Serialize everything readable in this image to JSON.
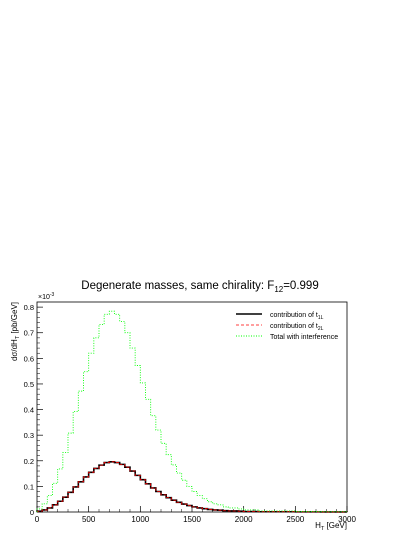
{
  "chart_data": {
    "type": "line",
    "title_main": "Degenerate masses, same chirality: F",
    "title_sub": "12",
    "title_suffix": "=0.999",
    "xlabel_main": "H",
    "xlabel_sub": "T",
    "xlabel_unit": " [GeV]",
    "ylabel_main": "dσ/dH",
    "ylabel_sub": "T",
    "ylabel_unit": " [pb/GeV]",
    "y_multiplier": "×10",
    "y_multiplier_exp": "-3",
    "xlim": [
      0,
      3000
    ],
    "ylim": [
      0,
      0.82
    ],
    "x_ticks": [
      0,
      500,
      1000,
      1500,
      2000,
      2500,
      3000
    ],
    "x_tick_labels": [
      "0",
      "500",
      "1000",
      "1500",
      "2000",
      "2500",
      "3000"
    ],
    "y_ticks": [
      0,
      0.1,
      0.2,
      0.3,
      0.4,
      0.5,
      0.6,
      0.7,
      0.8
    ],
    "y_tick_labels": [
      "0",
      "0.1",
      "0.2",
      "0.3",
      "0.4",
      "0.5",
      "0.6",
      "0.7",
      "0.8"
    ],
    "bin_edges": [
      0,
      50,
      100,
      150,
      200,
      250,
      300,
      350,
      400,
      450,
      500,
      550,
      600,
      650,
      700,
      750,
      800,
      850,
      900,
      950,
      1000,
      1050,
      1100,
      1150,
      1200,
      1250,
      1300,
      1350,
      1400,
      1450,
      1500,
      1550,
      1600,
      1650,
      1700,
      1750,
      1800,
      1850,
      1900,
      1950,
      2000,
      2050,
      2100,
      2150,
      2200,
      2250,
      2300,
      2350,
      2400,
      2450,
      2500,
      2550,
      2600,
      2650,
      2700,
      2750,
      2800,
      2850,
      2900,
      2950,
      3000
    ],
    "legend_position": "top-right",
    "series": [
      {
        "name_main": "contribution of t",
        "name_sub": "1L",
        "color": "#000000",
        "style": "solid",
        "values": [
          0.003,
          0.008,
          0.016,
          0.028,
          0.042,
          0.058,
          0.077,
          0.098,
          0.118,
          0.137,
          0.155,
          0.17,
          0.183,
          0.193,
          0.196,
          0.193,
          0.186,
          0.175,
          0.16,
          0.143,
          0.126,
          0.11,
          0.094,
          0.08,
          0.067,
          0.056,
          0.046,
          0.038,
          0.031,
          0.025,
          0.02,
          0.016,
          0.013,
          0.01,
          0.008,
          0.007,
          0.005,
          0.004,
          0.004,
          0.003,
          0.002,
          0.002,
          0.002,
          0.001,
          0.001,
          0.001,
          0.001,
          0.001,
          0.001,
          0.001,
          0.0005,
          0.0005,
          0.0005,
          0.0005,
          0.0005,
          0.0003,
          0.0003,
          0.0003,
          0.0003,
          0.0003
        ]
      },
      {
        "name_main": "contribution of t",
        "name_sub": "2L",
        "color": "#ff0000",
        "style": "dashed",
        "values": [
          0.003,
          0.008,
          0.016,
          0.028,
          0.042,
          0.058,
          0.077,
          0.098,
          0.118,
          0.137,
          0.155,
          0.17,
          0.183,
          0.193,
          0.196,
          0.193,
          0.186,
          0.175,
          0.16,
          0.143,
          0.126,
          0.11,
          0.094,
          0.08,
          0.067,
          0.056,
          0.046,
          0.038,
          0.031,
          0.025,
          0.02,
          0.016,
          0.013,
          0.01,
          0.008,
          0.007,
          0.005,
          0.004,
          0.004,
          0.003,
          0.002,
          0.002,
          0.002,
          0.001,
          0.001,
          0.001,
          0.001,
          0.001,
          0.001,
          0.001,
          0.0005,
          0.0005,
          0.0005,
          0.0005,
          0.0005,
          0.0003,
          0.0003,
          0.0003,
          0.0003,
          0.0003
        ]
      },
      {
        "name_main": "Total with interference",
        "name_sub": "",
        "color": "#00ff00",
        "style": "dotted",
        "values": [
          0.012,
          0.032,
          0.064,
          0.112,
          0.168,
          0.232,
          0.308,
          0.392,
          0.472,
          0.548,
          0.62,
          0.68,
          0.732,
          0.772,
          0.784,
          0.772,
          0.744,
          0.7,
          0.64,
          0.572,
          0.504,
          0.44,
          0.376,
          0.32,
          0.268,
          0.224,
          0.184,
          0.152,
          0.124,
          0.1,
          0.08,
          0.064,
          0.052,
          0.04,
          0.032,
          0.028,
          0.02,
          0.016,
          0.016,
          0.012,
          0.008,
          0.008,
          0.008,
          0.004,
          0.004,
          0.004,
          0.004,
          0.004,
          0.004,
          0.004,
          0.002,
          0.002,
          0.002,
          0.002,
          0.002,
          0.0012,
          0.0012,
          0.0012,
          0.0012,
          0.0012
        ]
      }
    ]
  }
}
